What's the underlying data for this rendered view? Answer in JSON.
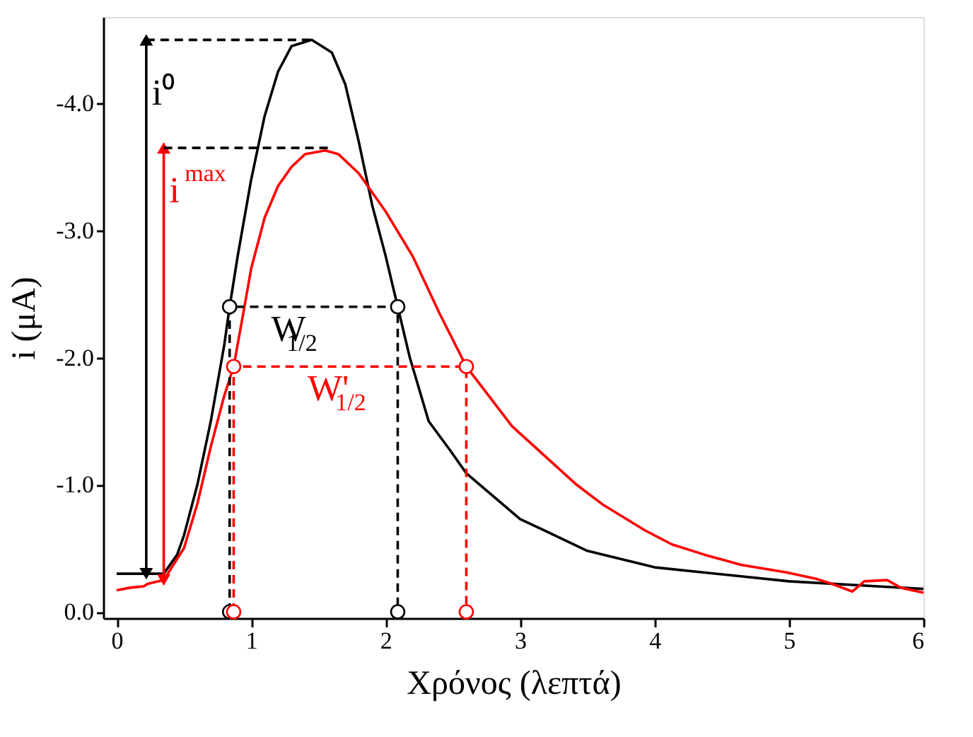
{
  "chart_data": {
    "type": "line",
    "xlabel": "Χρόνος (λεπτά)",
    "ylabel": "i (μA)",
    "xlim": [
      -0.1,
      6.0
    ],
    "ylim": [
      0.05,
      -4.68
    ],
    "xticks": [
      0,
      1,
      2,
      3,
      4,
      5,
      6
    ],
    "yticks": [
      {
        "value": 0,
        "label": "0.0"
      },
      {
        "value": -1,
        "label": "-1.0"
      },
      {
        "value": -2,
        "label": "-2.0"
      },
      {
        "value": -3,
        "label": "-3.0"
      },
      {
        "value": -4,
        "label": "-4.0"
      }
    ],
    "grid": false,
    "series": [
      {
        "color": "#000000",
        "line_style": "solid",
        "marker": "none",
        "x": [
          0,
          0.2,
          0.35,
          0.45,
          0.5,
          0.6,
          0.7,
          0.8,
          0.84,
          0.9,
          1.0,
          1.1,
          1.2,
          1.3,
          1.45,
          1.6,
          1.7,
          1.8,
          1.9,
          2.0,
          2.09,
          2.18,
          2.32,
          2.48,
          2.6,
          3.0,
          3.5,
          4.0,
          5.0,
          6.0
        ],
        "values": [
          -0.3,
          -0.3,
          -0.3,
          -0.45,
          -0.6,
          -1.0,
          -1.5,
          -2.1,
          -2.4,
          -2.8,
          -3.4,
          -3.9,
          -4.25,
          -4.45,
          -4.5,
          -4.4,
          -4.15,
          -3.7,
          -3.2,
          -2.8,
          -2.4,
          -2.0,
          -1.5,
          -1.27,
          -1.09,
          -0.73,
          -0.48,
          -0.35,
          -0.24,
          -0.18
        ]
      },
      {
        "color": "#ff0000",
        "line_style": "solid",
        "marker": "none",
        "x": [
          0,
          0.1,
          0.2,
          0.23,
          0.35,
          0.5,
          0.6,
          0.7,
          0.8,
          0.87,
          0.95,
          1.0,
          1.1,
          1.2,
          1.3,
          1.4,
          1.55,
          1.65,
          1.8,
          1.9,
          2.0,
          2.2,
          2.4,
          2.6,
          2.94,
          3.42,
          3.62,
          3.93,
          4.13,
          4.37,
          4.64,
          4.98,
          5.2,
          5.32,
          5.47,
          5.56,
          5.73,
          5.83,
          6.0
        ],
        "values": [
          -0.17,
          -0.19,
          -0.2,
          -0.22,
          -0.25,
          -0.5,
          -0.85,
          -1.3,
          -1.7,
          -1.93,
          -2.4,
          -2.7,
          -3.1,
          -3.35,
          -3.5,
          -3.6,
          -3.63,
          -3.6,
          -3.45,
          -3.3,
          -3.15,
          -2.8,
          -2.35,
          -1.93,
          -1.46,
          -1.0,
          -0.84,
          -0.64,
          -0.53,
          -0.45,
          -0.37,
          -0.31,
          -0.26,
          -0.22,
          -0.16,
          -0.24,
          -0.25,
          -0.19,
          -0.15
        ]
      },
      {
        "name": "W$_{1/2}$",
        "color": "#000000",
        "line_style": "dashed",
        "marker": "circle",
        "x": [
          0.84,
          0.84,
          2.09,
          2.09
        ],
        "values": [
          0,
          -2.4,
          -2.4,
          0
        ]
      },
      {
        "name": "W'$_{1/2}$",
        "color": "#ff0000",
        "line_style": "dashed",
        "marker": "circle",
        "x": [
          0.87,
          0.87,
          2.6,
          2.6
        ],
        "values": [
          0,
          -1.93,
          -1.93,
          0
        ]
      },
      {
        "name": "i⁰",
        "color": "#000000",
        "line_style": "solid",
        "marker": "triangle",
        "x": [
          0.22,
          0.22
        ],
        "values": [
          -0.3,
          -4.5
        ]
      },
      {
        "name": "i$^{max}$",
        "color": "#ff0000",
        "line_style": "solid",
        "marker": "triangle",
        "x": [
          0.35,
          0.35
        ],
        "values": [
          -0.25,
          -3.65
        ]
      },
      {
        "color": "#000000",
        "line_style": "dashed",
        "marker": "none",
        "x": [
          0.22,
          1.45
        ],
        "values": [
          -4.5,
          -4.5
        ]
      },
      {
        "color": "#000000",
        "line_style": "dashed",
        "marker": "none",
        "x": [
          0.35,
          1.6
        ],
        "values": [
          -3.65,
          -3.65
        ]
      }
    ]
  }
}
